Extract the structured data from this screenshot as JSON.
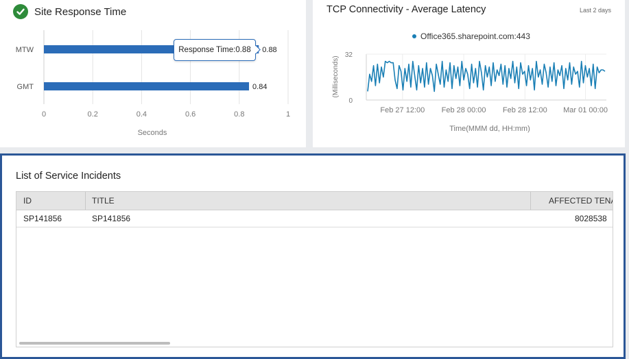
{
  "site_response": {
    "title": "Site Response Time",
    "tooltip": "Response Time:0.88"
  },
  "tcp": {
    "title": "TCP Connectivity - Average Latency",
    "range_label": "Last 2 days"
  },
  "incidents": {
    "title": "List of Service Incidents",
    "columns": [
      "ID",
      "TITLE",
      "AFFECTED TENAN"
    ],
    "rows": [
      {
        "id": "SP141856",
        "title": "SP141856",
        "affected": "8028538"
      }
    ]
  },
  "chart_data": [
    {
      "type": "bar",
      "orientation": "horizontal",
      "categories": [
        "MTW",
        "GMT"
      ],
      "values": [
        0.88,
        0.84
      ],
      "data_labels": [
        "0.88",
        "0.84"
      ],
      "xlabel": "Seconds",
      "xlim": [
        0,
        1
      ],
      "x_ticks": [
        "0",
        "0.2",
        "0.4",
        "0.6",
        "0.8",
        "1"
      ],
      "grid": true,
      "color": "#2b6cb8"
    },
    {
      "type": "line",
      "series": [
        {
          "name": "Office365.sharepoint.com:443",
          "color": "#1a7fb5",
          "values": [
            6,
            18,
            13,
            24,
            10,
            25,
            12,
            23,
            16,
            27,
            26,
            27,
            26,
            26,
            14,
            8,
            24,
            20,
            7,
            22,
            13,
            25,
            9,
            27,
            17,
            7,
            24,
            12,
            22,
            9,
            26,
            11,
            22,
            17,
            6,
            25,
            18,
            11,
            27,
            9,
            21,
            13,
            26,
            8,
            24,
            15,
            23,
            10,
            27,
            14,
            22,
            18,
            8,
            25,
            12,
            22,
            9,
            27,
            19,
            7,
            24,
            16,
            23,
            10,
            26,
            13,
            21,
            17,
            25,
            11,
            24,
            9,
            22,
            15,
            27,
            12,
            23,
            8,
            26,
            18,
            20,
            10,
            24,
            14,
            22,
            7,
            27,
            16,
            21,
            11,
            25,
            19,
            9,
            23,
            13,
            26,
            10,
            21,
            17,
            24,
            8,
            22,
            14,
            26,
            11,
            23,
            18,
            20,
            9,
            27,
            12,
            24,
            16,
            22,
            10,
            25,
            8,
            23,
            19,
            21,
            21,
            20
          ]
        }
      ],
      "ylabel": "(Milliseconds)",
      "ylim": [
        0,
        32
      ],
      "y_ticks": [
        "0",
        "32"
      ],
      "xlabel": "Time(MMM dd, HH:mm)",
      "x_ticks": [
        "Feb 27 12:00",
        "Feb 28 00:00",
        "Feb 28 12:00",
        "Mar 01 00:00"
      ],
      "x_tick_fractions": [
        0.151,
        0.406,
        0.661,
        0.913
      ],
      "legend_position": "top-center",
      "grid": true
    }
  ],
  "colors": {
    "accent": "#2b6cb8",
    "panel_border": "#2b5797",
    "success": "#2e8b3a",
    "line": "#1a7fb5"
  }
}
